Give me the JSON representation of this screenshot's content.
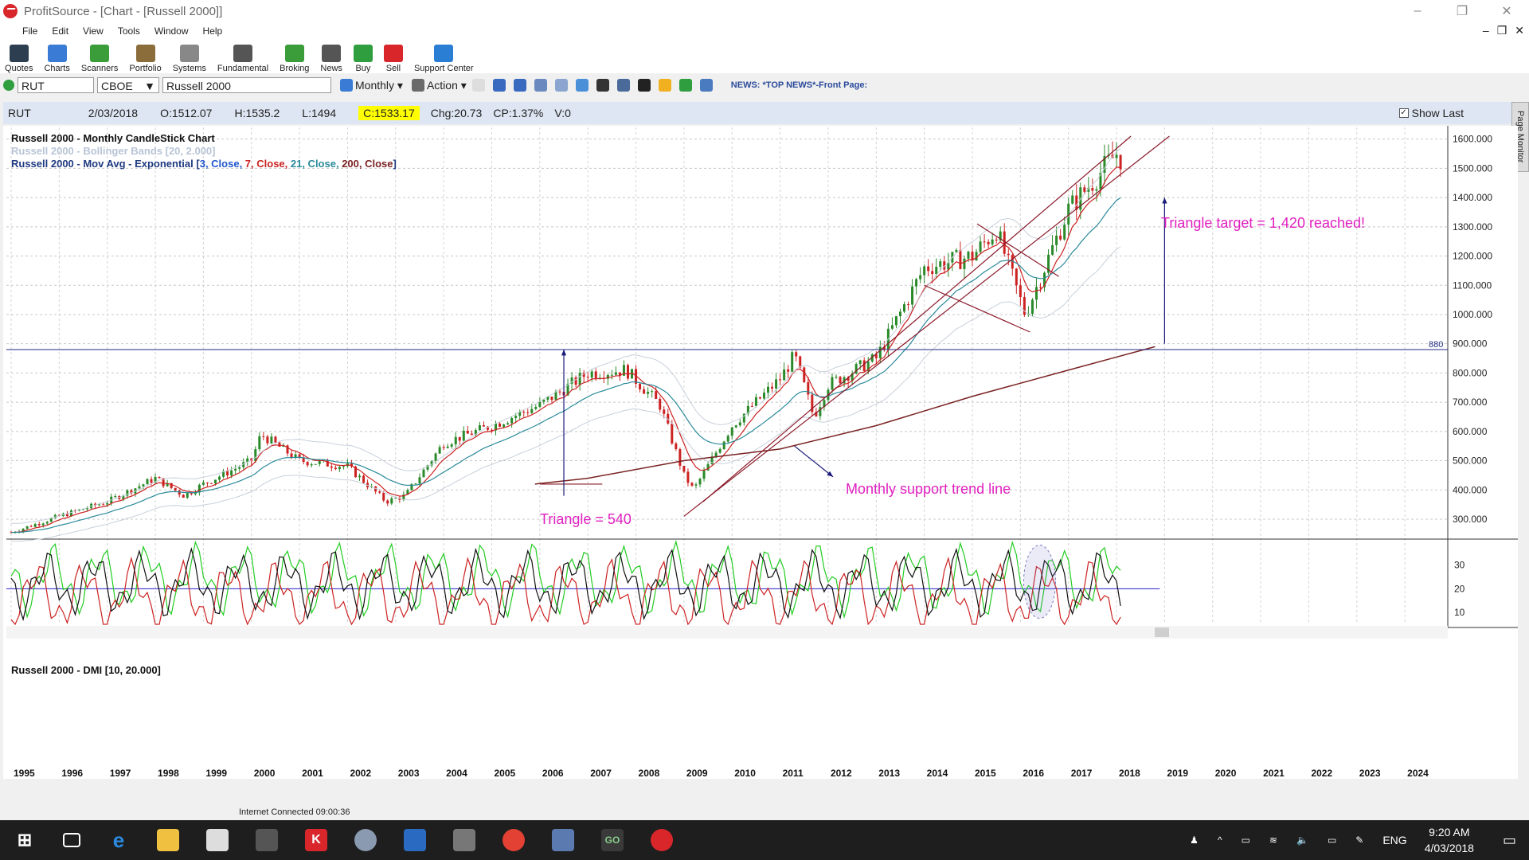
{
  "window": {
    "title": "ProfitSource - [Chart - [Russell 2000]]"
  },
  "menu": [
    "File",
    "Edit",
    "View",
    "Tools",
    "Window",
    "Help"
  ],
  "toolbar": [
    {
      "label": "Quotes",
      "icon": "quotes-icon",
      "color": "#2c3e50"
    },
    {
      "label": "Charts",
      "icon": "charts-icon",
      "color": "#3a7bd5"
    },
    {
      "label": "Scanners",
      "icon": "scanners-icon",
      "color": "#3a9d3a"
    },
    {
      "label": "Portfolio",
      "icon": "portfolio-icon",
      "color": "#8a6d3b"
    },
    {
      "label": "Systems",
      "icon": "systems-icon",
      "color": "#888888"
    },
    {
      "label": "Fundamental",
      "icon": "fundamental-icon",
      "color": "#555555"
    },
    {
      "label": "Broking",
      "icon": "broking-icon",
      "color": "#3a9d3a"
    },
    {
      "label": "News",
      "icon": "news-icon",
      "color": "#555555"
    },
    {
      "label": "Buy",
      "icon": "buy-icon",
      "color": "#2e9e3e"
    },
    {
      "label": "Sell",
      "icon": "sell-icon",
      "color": "#d9262b"
    },
    {
      "label": "Support Center",
      "icon": "help-icon",
      "color": "#2a7fd4"
    }
  ],
  "symbol_bar": {
    "symbol": "RUT",
    "exchange": "CBOE",
    "name": "Russell 2000",
    "period": "Monthly",
    "action": "Action",
    "news": "NEWS: *TOP NEWS*-Front Page:"
  },
  "quote": {
    "symbol": "RUT",
    "date": "2/03/2018",
    "open": "O:1512.07",
    "high": "H:1535.2",
    "low": "L:1494",
    "close": "C:1533.17",
    "change": "Chg:20.73",
    "change_pct": "CP:1.37%",
    "volume": "V:0",
    "show_last": "Show Last"
  },
  "legend": {
    "l1": "Russell 2000 - Monthly CandleStick Chart",
    "l2": "Russell 2000 - Bollinger Bands [20, 2.000]",
    "l3_prefix": "Russell 2000 - Mov Avg - Exponential [",
    "ema": [
      {
        "text": "3, Close,",
        "color": "#2255cc"
      },
      {
        "text": "7, Close,",
        "color": "#cc2222"
      },
      {
        "text": "21, Close,",
        "color": "#2a8a9a"
      },
      {
        "text": "200, Close",
        "color": "#7a2222"
      }
    ],
    "l3_suffix": "]",
    "dmi": "Russell 2000 - DMI [10, 20.000]"
  },
  "annotations": {
    "target": "Triangle target = 1,420 reached!",
    "triangle": "Triangle  = 540",
    "support": "Monthly support trend line",
    "level": "880"
  },
  "colors": {
    "annotation": "#e020c0",
    "candle_up": "#2a8a2a",
    "candle_down": "#cc2222"
  },
  "chart_data": {
    "type": "candlestick",
    "period": "monthly",
    "y_ticks": [
      "300.000",
      "400.000",
      "500.000",
      "600.000",
      "700.000",
      "800.000",
      "900.000",
      "1000.000",
      "1100.000",
      "1200.000",
      "1300.000",
      "1400.000",
      "1500.000",
      "1600.000"
    ],
    "ylim": [
      240,
      1640
    ],
    "x_ticks": [
      "1995",
      "1996",
      "1997",
      "1998",
      "1999",
      "2000",
      "2001",
      "2002",
      "2003",
      "2004",
      "2005",
      "2006",
      "2007",
      "2008",
      "2009",
      "2010",
      "2011",
      "2012",
      "2013",
      "2014",
      "2015",
      "2016",
      "2017",
      "2018",
      "2019",
      "2020",
      "2021",
      "2022",
      "2023",
      "2024"
    ],
    "price_anchors": [
      [
        1995.0,
        255
      ],
      [
        1996.0,
        310
      ],
      [
        1997.0,
        360
      ],
      [
        1998.0,
        440
      ],
      [
        1998.6,
        380
      ],
      [
        1999.0,
        420
      ],
      [
        2000.0,
        500
      ],
      [
        2000.2,
        590
      ],
      [
        2001.0,
        500
      ],
      [
        2002.0,
        480
      ],
      [
        2002.8,
        360
      ],
      [
        2003.2,
        380
      ],
      [
        2004.0,
        560
      ],
      [
        2005.0,
        620
      ],
      [
        2006.0,
        690
      ],
      [
        2007.0,
        800
      ],
      [
        2007.8,
        810
      ],
      [
        2008.5,
        690
      ],
      [
        2009.0,
        450
      ],
      [
        2009.2,
        400
      ],
      [
        2010.0,
        620
      ],
      [
        2011.0,
        780
      ],
      [
        2011.3,
        860
      ],
      [
        2011.7,
        650
      ],
      [
        2012.0,
        760
      ],
      [
        2013.0,
        850
      ],
      [
        2014.0,
        1160
      ],
      [
        2015.0,
        1200
      ],
      [
        2015.5,
        1290
      ],
      [
        2016.1,
        1000
      ],
      [
        2016.6,
        1200
      ],
      [
        2017.0,
        1360
      ],
      [
        2018.0,
        1550
      ],
      [
        2018.1,
        1533
      ]
    ],
    "ema_200": [
      [
        2005.9,
        420
      ],
      [
        2007.0,
        440
      ],
      [
        2009.0,
        500
      ],
      [
        2011.0,
        540
      ],
      [
        2013.0,
        620
      ],
      [
        2015.0,
        720
      ],
      [
        2017.0,
        810
      ],
      [
        2018.8,
        890
      ]
    ],
    "level_880": 880,
    "dmi_ticks": [
      "10",
      "20",
      "30"
    ],
    "dmi_ylim": [
      5,
      40
    ],
    "dmi_threshold": 20
  },
  "status": {
    "text": "Internet Connected 09:00:36"
  },
  "taskbar": {
    "time": "9:20 AM",
    "date": "4/03/2018",
    "lang": "ENG"
  }
}
